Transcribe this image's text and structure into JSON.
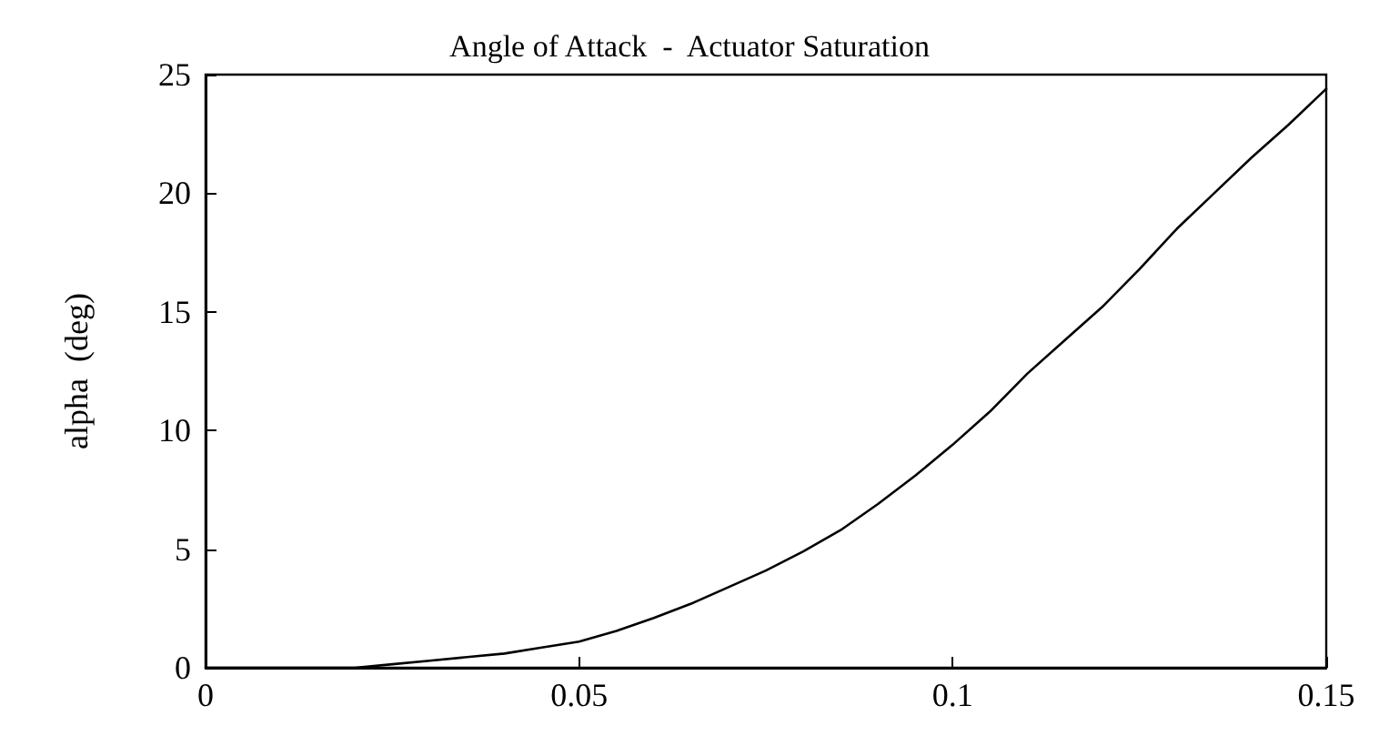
{
  "chart_data": {
    "type": "line",
    "title": "Angle of Attack  -  Actuator Saturation",
    "ylabel": "alpha  (deg)",
    "x": [
      0,
      0.02,
      0.025,
      0.03,
      0.035,
      0.04,
      0.045,
      0.05,
      0.055,
      0.06,
      0.065,
      0.07,
      0.075,
      0.08,
      0.085,
      0.09,
      0.095,
      0.1,
      0.105,
      0.11,
      0.115,
      0.12,
      0.125,
      0.13,
      0.135,
      0.14,
      0.145,
      0.15
    ],
    "series": [
      {
        "color": "#000000",
        "values": [
          0,
          0,
          0.15,
          0.3,
          0.45,
          0.6,
          0.85,
          1.1,
          1.55,
          2.1,
          2.7,
          3.4,
          4.1,
          4.9,
          5.8,
          6.9,
          8.1,
          9.4,
          10.8,
          12.4,
          13.8,
          15.2,
          16.8,
          18.5,
          20,
          21.5,
          22.9,
          24.4
        ]
      }
    ],
    "xlim": [
      0,
      0.15
    ],
    "ylim": [
      0,
      25
    ],
    "xticks": [
      0,
      0.05,
      0.1,
      0.15
    ],
    "yticks": [
      0,
      5,
      10,
      15,
      20,
      25
    ],
    "grid": false,
    "marker": "none",
    "line_style": "solid"
  }
}
